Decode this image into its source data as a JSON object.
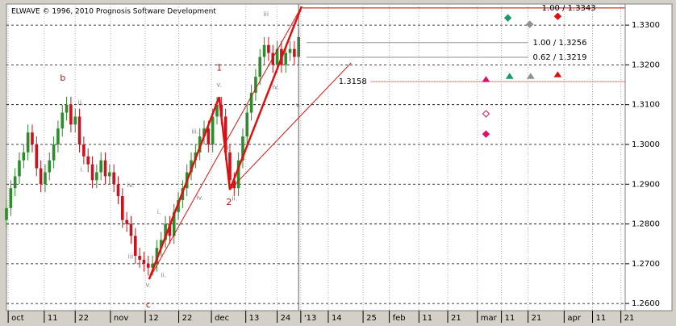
{
  "chart_data": {
    "type": "candlestick",
    "title": "ELWAVE © 1996, 2010 Prognosis Software Development",
    "x": [
      0,
      1,
      2,
      3,
      4,
      5,
      6,
      7,
      8,
      9,
      10,
      11,
      12,
      13,
      14,
      15,
      16,
      17,
      18,
      19,
      20,
      21,
      22,
      23,
      24,
      25,
      26,
      27,
      28,
      29,
      30,
      31,
      32,
      33,
      34,
      35,
      36,
      37,
      38,
      39,
      40,
      41,
      42,
      43,
      44,
      45,
      46,
      47,
      48,
      49,
      50,
      51,
      52,
      53,
      54,
      55,
      56,
      57,
      58,
      59,
      60,
      61,
      62,
      63,
      64,
      65,
      66,
      67,
      68
    ],
    "open": [
      1.281,
      1.284,
      1.289,
      1.292,
      1.296,
      1.298,
      1.303,
      1.3,
      1.294,
      1.29,
      1.293,
      1.296,
      1.3,
      1.304,
      1.308,
      1.31,
      1.305,
      1.307,
      1.3,
      1.297,
      1.295,
      1.291,
      1.293,
      1.296,
      1.292,
      1.293,
      1.29,
      1.287,
      1.281,
      1.28,
      1.277,
      1.272,
      1.271,
      1.27,
      1.269,
      1.27,
      1.274,
      1.276,
      1.28,
      1.277,
      1.283,
      1.286,
      1.289,
      1.293,
      1.296,
      1.298,
      1.302,
      1.304,
      1.3,
      1.307,
      1.31,
      1.307,
      1.298,
      1.291,
      1.289,
      1.296,
      1.302,
      1.308,
      1.313,
      1.317,
      1.322,
      1.325,
      1.323,
      1.32,
      1.324,
      1.32,
      1.323,
      1.324,
      1.322
    ],
    "high": [
      1.286,
      1.291,
      1.294,
      1.298,
      1.3,
      1.305,
      1.305,
      1.302,
      1.296,
      1.295,
      1.298,
      1.302,
      1.306,
      1.31,
      1.312,
      1.312,
      1.309,
      1.309,
      1.302,
      1.299,
      1.297,
      1.295,
      1.298,
      1.298,
      1.295,
      1.295,
      1.292,
      1.289,
      1.283,
      1.282,
      1.279,
      1.274,
      1.273,
      1.272,
      1.272,
      1.276,
      1.278,
      1.282,
      1.282,
      1.285,
      1.288,
      1.291,
      1.295,
      1.298,
      1.3,
      1.304,
      1.306,
      1.306,
      1.309,
      1.312,
      1.312,
      1.309,
      1.3,
      1.293,
      1.298,
      1.304,
      1.31,
      1.315,
      1.319,
      1.324,
      1.327,
      1.327,
      1.325,
      1.326,
      1.326,
      1.325,
      1.326,
      1.326,
      1.329
    ],
    "low": [
      1.279,
      1.282,
      1.287,
      1.29,
      1.294,
      1.296,
      1.298,
      1.292,
      1.288,
      1.288,
      1.291,
      1.294,
      1.298,
      1.302,
      1.306,
      1.303,
      1.303,
      1.298,
      1.295,
      1.293,
      1.289,
      1.289,
      1.291,
      1.29,
      1.29,
      1.288,
      1.285,
      1.279,
      1.278,
      1.275,
      1.27,
      1.269,
      1.268,
      1.267,
      1.267,
      1.268,
      1.272,
      1.274,
      1.275,
      1.275,
      1.281,
      1.284,
      1.287,
      1.291,
      1.294,
      1.296,
      1.3,
      1.298,
      1.298,
      1.305,
      1.305,
      1.296,
      1.289,
      1.287,
      1.287,
      1.294,
      1.3,
      1.306,
      1.311,
      1.315,
      1.32,
      1.321,
      1.318,
      1.318,
      1.318,
      1.318,
      1.321,
      1.32,
      1.32
    ],
    "close": [
      1.284,
      1.289,
      1.292,
      1.296,
      1.298,
      1.303,
      1.3,
      1.294,
      1.29,
      1.293,
      1.296,
      1.3,
      1.304,
      1.308,
      1.31,
      1.305,
      1.307,
      1.3,
      1.297,
      1.295,
      1.291,
      1.293,
      1.296,
      1.292,
      1.293,
      1.29,
      1.287,
      1.281,
      1.28,
      1.277,
      1.272,
      1.271,
      1.27,
      1.269,
      1.27,
      1.274,
      1.276,
      1.28,
      1.277,
      1.283,
      1.286,
      1.289,
      1.293,
      1.296,
      1.298,
      1.302,
      1.304,
      1.3,
      1.307,
      1.31,
      1.307,
      1.298,
      1.291,
      1.289,
      1.296,
      1.302,
      1.308,
      1.313,
      1.317,
      1.322,
      1.325,
      1.323,
      1.32,
      1.324,
      1.32,
      1.323,
      1.324,
      1.322,
      1.327
    ],
    "up_color": "#2e8b2e",
    "down_color": "#c8141e",
    "xlim": [
      0,
      144
    ],
    "ylim": [
      1.2582,
      1.3353
    ],
    "xticks": [
      {
        "value": 0.4,
        "label": "oct"
      },
      {
        "value": 8.8,
        "label": "11"
      },
      {
        "value": 16,
        "label": "22"
      },
      {
        "value": 24.2,
        "label": "nov"
      },
      {
        "value": 32.3,
        "label": "12"
      },
      {
        "value": 40.1,
        "label": "22"
      },
      {
        "value": 47.7,
        "label": "dec"
      },
      {
        "value": 55.7,
        "label": "13"
      },
      {
        "value": 63,
        "label": "24"
      },
      {
        "value": 68.5,
        "label": "'13"
      },
      {
        "value": 74.9,
        "label": "14"
      },
      {
        "value": 83,
        "label": "25"
      },
      {
        "value": 89.1,
        "label": "feb"
      },
      {
        "value": 96,
        "label": "11"
      },
      {
        "value": 102.7,
        "label": "21"
      },
      {
        "value": 109.6,
        "label": "mar"
      },
      {
        "value": 115.2,
        "label": "11"
      },
      {
        "value": 121.4,
        "label": "21"
      },
      {
        "value": 129.8,
        "label": "apr"
      },
      {
        "value": 136.4,
        "label": "11"
      },
      {
        "value": 143,
        "label": "21"
      }
    ],
    "yticks": [
      {
        "value": 1.26,
        "label": "1.2600"
      },
      {
        "value": 1.27,
        "label": "1.2700"
      },
      {
        "value": 1.28,
        "label": "1.2800"
      },
      {
        "value": 1.29,
        "label": "1.2900"
      },
      {
        "value": 1.3,
        "label": "1.3000"
      },
      {
        "value": 1.31,
        "label": "1.3100"
      },
      {
        "value": 1.32,
        "label": "1.3200"
      },
      {
        "value": 1.33,
        "label": "1.3300"
      }
    ],
    "grid": true,
    "trend_lines": [
      {
        "x": [
          33.2,
          49.5,
          52,
          68.7
        ],
        "y": [
          1.2661,
          1.3119,
          1.2886,
          1.3347
        ],
        "color": "#e01010",
        "width": 2.5
      },
      {
        "x": [
          33.2,
          68.7
        ],
        "y": [
          1.2661,
          1.3347
        ],
        "color": "#e01010",
        "width": 1
      },
      {
        "x": [
          52,
          80.2
        ],
        "y": [
          1.2886,
          1.3205
        ],
        "color": "#e01010",
        "width": 1
      }
    ],
    "levels": [
      {
        "label": "1.00 / 1.3343",
        "value": 1.3343,
        "x": [
          68.9,
          143.9
        ],
        "label_at": 124.6,
        "color": "#b00000",
        "dashed": false
      },
      {
        "label": "1.00 / 1.3256",
        "value": 1.3256,
        "x": [
          69.8,
          121.4
        ],
        "label_at": 122.5,
        "color": "#909090",
        "dashed": false
      },
      {
        "label": "0.62 / 1.3219",
        "value": 1.3219,
        "x": [
          69.8,
          121.4
        ],
        "label_at": 122.5,
        "color": "#909090",
        "dashed": false
      },
      {
        "label": "1.3158",
        "value": 1.3158,
        "x": [
          84.8,
          143.9
        ],
        "label_at": 77.3,
        "color": "#e01010",
        "dashed": true
      }
    ],
    "markers": [
      {
        "x": 116.7,
        "y": 1.3318,
        "shape": "diamond",
        "color": "#1a9a6a"
      },
      {
        "x": 121.8,
        "y": 1.3302,
        "shape": "diamond",
        "color": "#909090"
      },
      {
        "x": 128.3,
        "y": 1.3322,
        "shape": "diamond",
        "color": "#e01010"
      },
      {
        "x": 111.6,
        "y": 1.3164,
        "shape": "triangle",
        "color": "#e0106a"
      },
      {
        "x": 117.1,
        "y": 1.3172,
        "shape": "triangle",
        "color": "#1a9a6a"
      },
      {
        "x": 122,
        "y": 1.3172,
        "shape": "triangle",
        "color": "#909090"
      },
      {
        "x": 128.3,
        "y": 1.3176,
        "shape": "triangle",
        "color": "#e01010"
      },
      {
        "x": 111.6,
        "y": 1.3077,
        "shape": "hollow-diamond",
        "color": "#e0106a"
      },
      {
        "x": 111.6,
        "y": 1.3026,
        "shape": "diamond",
        "color": "#e0106a"
      }
    ],
    "annotations": [
      {
        "text": "b",
        "x": 13.1,
        "y": 1.3166,
        "color": "#c01010"
      },
      {
        "text": "ii.",
        "x": 17.3,
        "y": 1.3105,
        "color": "#808080"
      },
      {
        "text": "i.",
        "x": 17.6,
        "y": 1.2937,
        "color": "#808080"
      },
      {
        "text": "iv.",
        "x": 28.9,
        "y": 1.2898,
        "color": "#808080"
      },
      {
        "text": "iii",
        "x": 28.9,
        "y": 1.2718,
        "color": "#808080"
      },
      {
        "text": "v.",
        "x": 33,
        "y": 1.2647,
        "color": "#808080"
      },
      {
        "text": "ii.",
        "x": 36.6,
        "y": 1.2671,
        "color": "#808080"
      },
      {
        "text": "c",
        "x": 33,
        "y": 1.2596,
        "color": "#c01010"
      },
      {
        "text": "i.",
        "x": 35.5,
        "y": 1.2831,
        "color": "#808080"
      },
      {
        "text": "iii.",
        "x": 43.9,
        "y": 1.3032,
        "color": "#808080"
      },
      {
        "text": "iv.",
        "x": 45,
        "y": 1.2866,
        "color": "#808080"
      },
      {
        "text": "v.",
        "x": 49.5,
        "y": 1.315,
        "color": "#808080"
      },
      {
        "text": "1",
        "x": 49.5,
        "y": 1.3192,
        "color": "#c01010"
      },
      {
        "text": "i.",
        "x": 51.8,
        "y": 1.2992,
        "color": "#808080"
      },
      {
        "text": "ii.",
        "x": 53.1,
        "y": 1.2864,
        "color": "#808080"
      },
      {
        "text": "2",
        "x": 51.8,
        "y": 1.2854,
        "color": "#c01010"
      },
      {
        "text": "iii",
        "x": 60.4,
        "y": 1.3328,
        "color": "#808080"
      },
      {
        "text": "iv.",
        "x": 62.7,
        "y": 1.3144,
        "color": "#808080"
      },
      {
        "text": "v.",
        "x": 67.9,
        "y": 1.3099,
        "color": "#808080"
      }
    ]
  }
}
